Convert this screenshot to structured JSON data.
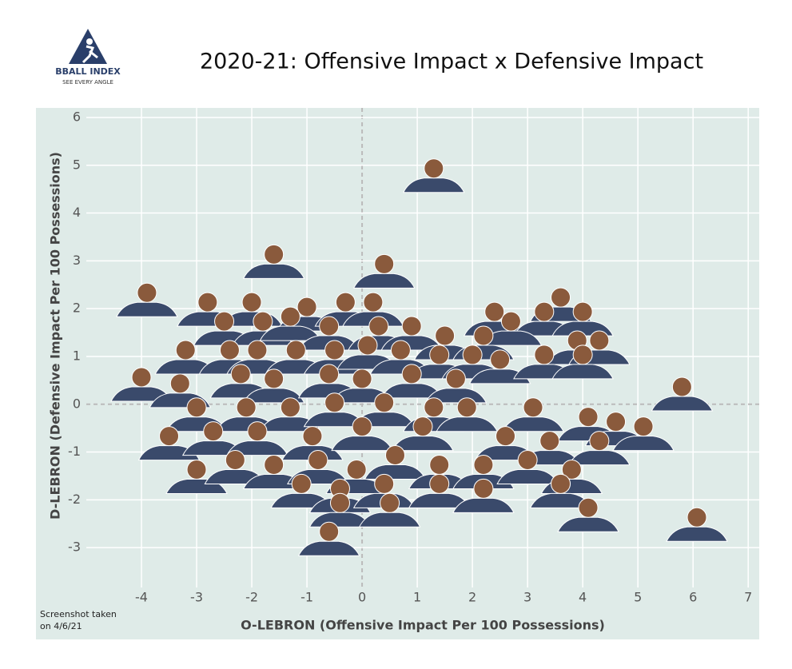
{
  "logo": {
    "name": "BBALL INDEX",
    "tagline": "SEE EVERY ANGLE"
  },
  "chart_data": {
    "type": "scatter",
    "title": "2020-21: Offensive Impact x Defensive Impact",
    "x_label": "O-LEBRON (Offensive Impact Per 100 Possessions)",
    "y_label": "D-LEBRON (Defensive Impact Per 100 Possessions)",
    "note": [
      "Screenshot taken",
      "on 4/6/21"
    ],
    "xlim": [
      -5,
      7.2
    ],
    "ylim": [
      -3.75,
      6.2
    ],
    "xticks": [
      -4,
      -3,
      -2,
      -1,
      0,
      1,
      2,
      3,
      4,
      5,
      6,
      7
    ],
    "yticks": [
      -3,
      -2,
      -1,
      0,
      1,
      2,
      3,
      4,
      5,
      6
    ],
    "grid": true,
    "background": "#dfebe8",
    "series": [
      {
        "color": "#3a4a6b",
        "x": [
          1.3,
          -1.6,
          0.4,
          -3.9,
          -2.8,
          -2.0,
          -1.0,
          -0.3,
          0.2,
          2.4,
          3.6,
          3.3,
          4.0,
          2.7,
          -2.5,
          -1.8,
          -1.3,
          -0.6,
          0.3,
          0.9,
          1.5,
          2.2,
          3.9,
          4.3,
          -3.2,
          -2.4,
          -1.9,
          -1.2,
          -0.5,
          0.1,
          0.7,
          1.4,
          2.0,
          2.5,
          3.3,
          4.0,
          -4.0,
          -3.3,
          -2.2,
          -1.6,
          -0.6,
          0.0,
          0.9,
          1.7,
          5.8,
          -3.0,
          -2.1,
          -1.3,
          -0.5,
          0.4,
          1.3,
          1.9,
          3.1,
          4.1,
          4.6,
          5.1,
          -3.5,
          -2.7,
          -1.9,
          -0.9,
          0.0,
          1.1,
          2.6,
          3.4,
          4.3,
          -3.0,
          -2.3,
          -1.6,
          -0.8,
          -0.1,
          0.6,
          1.4,
          2.2,
          3.0,
          3.8,
          -1.1,
          -0.4,
          0.4,
          1.4,
          2.2,
          3.6,
          -0.4,
          0.5,
          4.1,
          6.07,
          -0.6
        ],
        "values": [
          4.8,
          3.0,
          2.8,
          2.2,
          2.0,
          2.0,
          1.9,
          2.0,
          2.0,
          1.8,
          2.1,
          1.8,
          1.8,
          1.6,
          1.6,
          1.6,
          1.7,
          1.5,
          1.5,
          1.5,
          1.3,
          1.3,
          1.2,
          1.2,
          1.0,
          1.0,
          1.0,
          1.0,
          1.0,
          1.1,
          1.0,
          0.9,
          0.9,
          0.8,
          0.9,
          0.9,
          0.43,
          0.3,
          0.5,
          0.4,
          0.5,
          0.4,
          0.5,
          0.4,
          0.23,
          -0.2,
          -0.2,
          -0.2,
          -0.1,
          -0.1,
          -0.2,
          -0.2,
          -0.2,
          -0.4,
          -0.5,
          -0.6,
          -0.8,
          -0.7,
          -0.7,
          -0.8,
          -0.6,
          -0.6,
          -0.8,
          -0.9,
          -0.9,
          -1.5,
          -1.3,
          -1.4,
          -1.3,
          -1.5,
          -1.2,
          -1.4,
          -1.4,
          -1.3,
          -1.5,
          -1.8,
          -1.9,
          -1.8,
          -1.8,
          -1.9,
          -1.8,
          -2.2,
          -2.2,
          -2.3,
          -2.5,
          -2.8
        ]
      }
    ]
  }
}
